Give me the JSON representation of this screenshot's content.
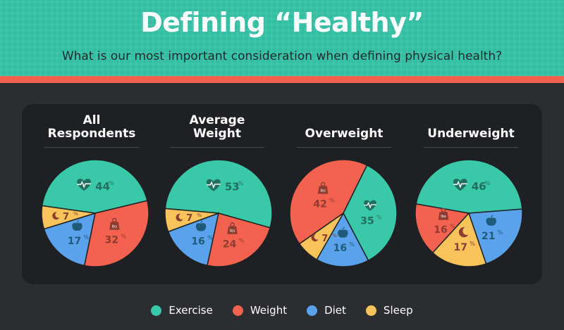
{
  "header": {
    "title": "Defining “Healthy”",
    "subtitle": "What is our most important consideration when defining physical health?"
  },
  "colors": {
    "exercise": "#3ac9a8",
    "weight": "#f2624e",
    "diet": "#5aa3ec",
    "sleep": "#f7c35a",
    "icon_dark": "#8c3c30"
  },
  "legend": [
    {
      "key": "exercise",
      "label": "Exercise"
    },
    {
      "key": "weight",
      "label": "Weight"
    },
    {
      "key": "diet",
      "label": "Diet"
    },
    {
      "key": "sleep",
      "label": "Sleep"
    }
  ],
  "chart_data": [
    {
      "type": "pie",
      "title": "All\nRespondents",
      "slices": [
        {
          "category": "Exercise",
          "value": 44
        },
        {
          "category": "Weight",
          "value": 32
        },
        {
          "category": "Diet",
          "value": 17
        },
        {
          "category": "Sleep",
          "value": 7
        }
      ]
    },
    {
      "type": "pie",
      "title": "Average\nWeight",
      "slices": [
        {
          "category": "Exercise",
          "value": 53
        },
        {
          "category": "Weight",
          "value": 24
        },
        {
          "category": "Diet",
          "value": 16
        },
        {
          "category": "Sleep",
          "value": 7
        }
      ]
    },
    {
      "type": "pie",
      "title": "Overweight",
      "slices": [
        {
          "category": "Weight",
          "value": 42
        },
        {
          "category": "Exercise",
          "value": 35
        },
        {
          "category": "Diet",
          "value": 16
        },
        {
          "category": "Sleep",
          "value": 7
        }
      ]
    },
    {
      "type": "pie",
      "title": "Underweight",
      "slices": [
        {
          "category": "Exercise",
          "value": 46
        },
        {
          "category": "Diet",
          "value": 21
        },
        {
          "category": "Sleep",
          "value": 17
        },
        {
          "category": "Weight",
          "value": 16
        }
      ]
    }
  ]
}
